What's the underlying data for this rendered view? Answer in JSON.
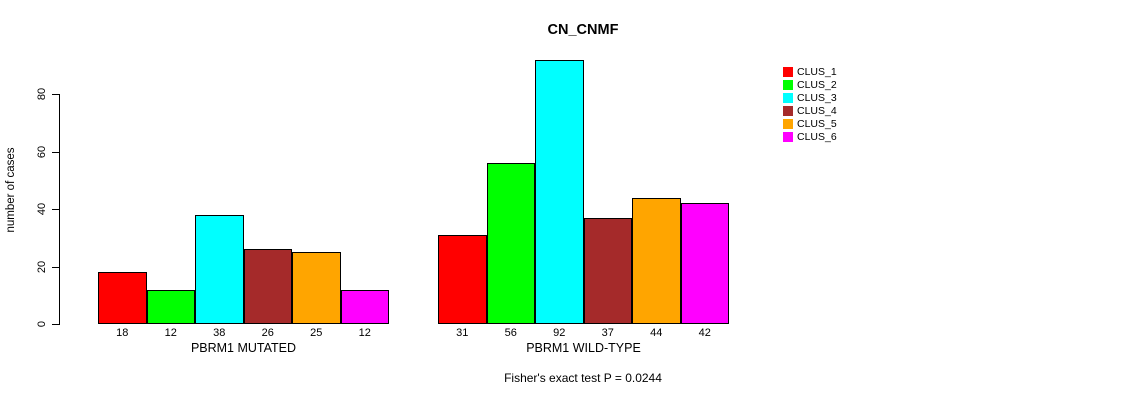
{
  "title": "CN_CNMF",
  "y_axis": {
    "label": "number of cases",
    "ticks": [
      0,
      20,
      40,
      60,
      80
    ]
  },
  "footer": "Fisher's exact test P = 0.0244",
  "chart_data": {
    "type": "bar",
    "title": "CN_CNMF",
    "xlabel": "",
    "ylabel": "number of cases",
    "ylim": [
      0,
      92
    ],
    "yticks": [
      0,
      20,
      40,
      60,
      80
    ],
    "grid": false,
    "legend_position": "right",
    "categories": [
      "PBRM1 MUTATED",
      "PBRM1 WILD-TYPE"
    ],
    "series": [
      {
        "name": "CLUS_1",
        "color": "#FF0000",
        "values": [
          18,
          31
        ]
      },
      {
        "name": "CLUS_2",
        "color": "#00FF00",
        "values": [
          12,
          56
        ]
      },
      {
        "name": "CLUS_3",
        "color": "#00FFFF",
        "values": [
          38,
          92
        ]
      },
      {
        "name": "CLUS_4",
        "color": "#A52A2A",
        "values": [
          26,
          37
        ]
      },
      {
        "name": "CLUS_5",
        "color": "#FFA500",
        "values": [
          25,
          44
        ]
      },
      {
        "name": "CLUS_6",
        "color": "#FF00FF",
        "values": [
          12,
          42
        ]
      }
    ],
    "bar_value_labels": true,
    "annotation": "Fisher's exact test P = 0.0244"
  }
}
